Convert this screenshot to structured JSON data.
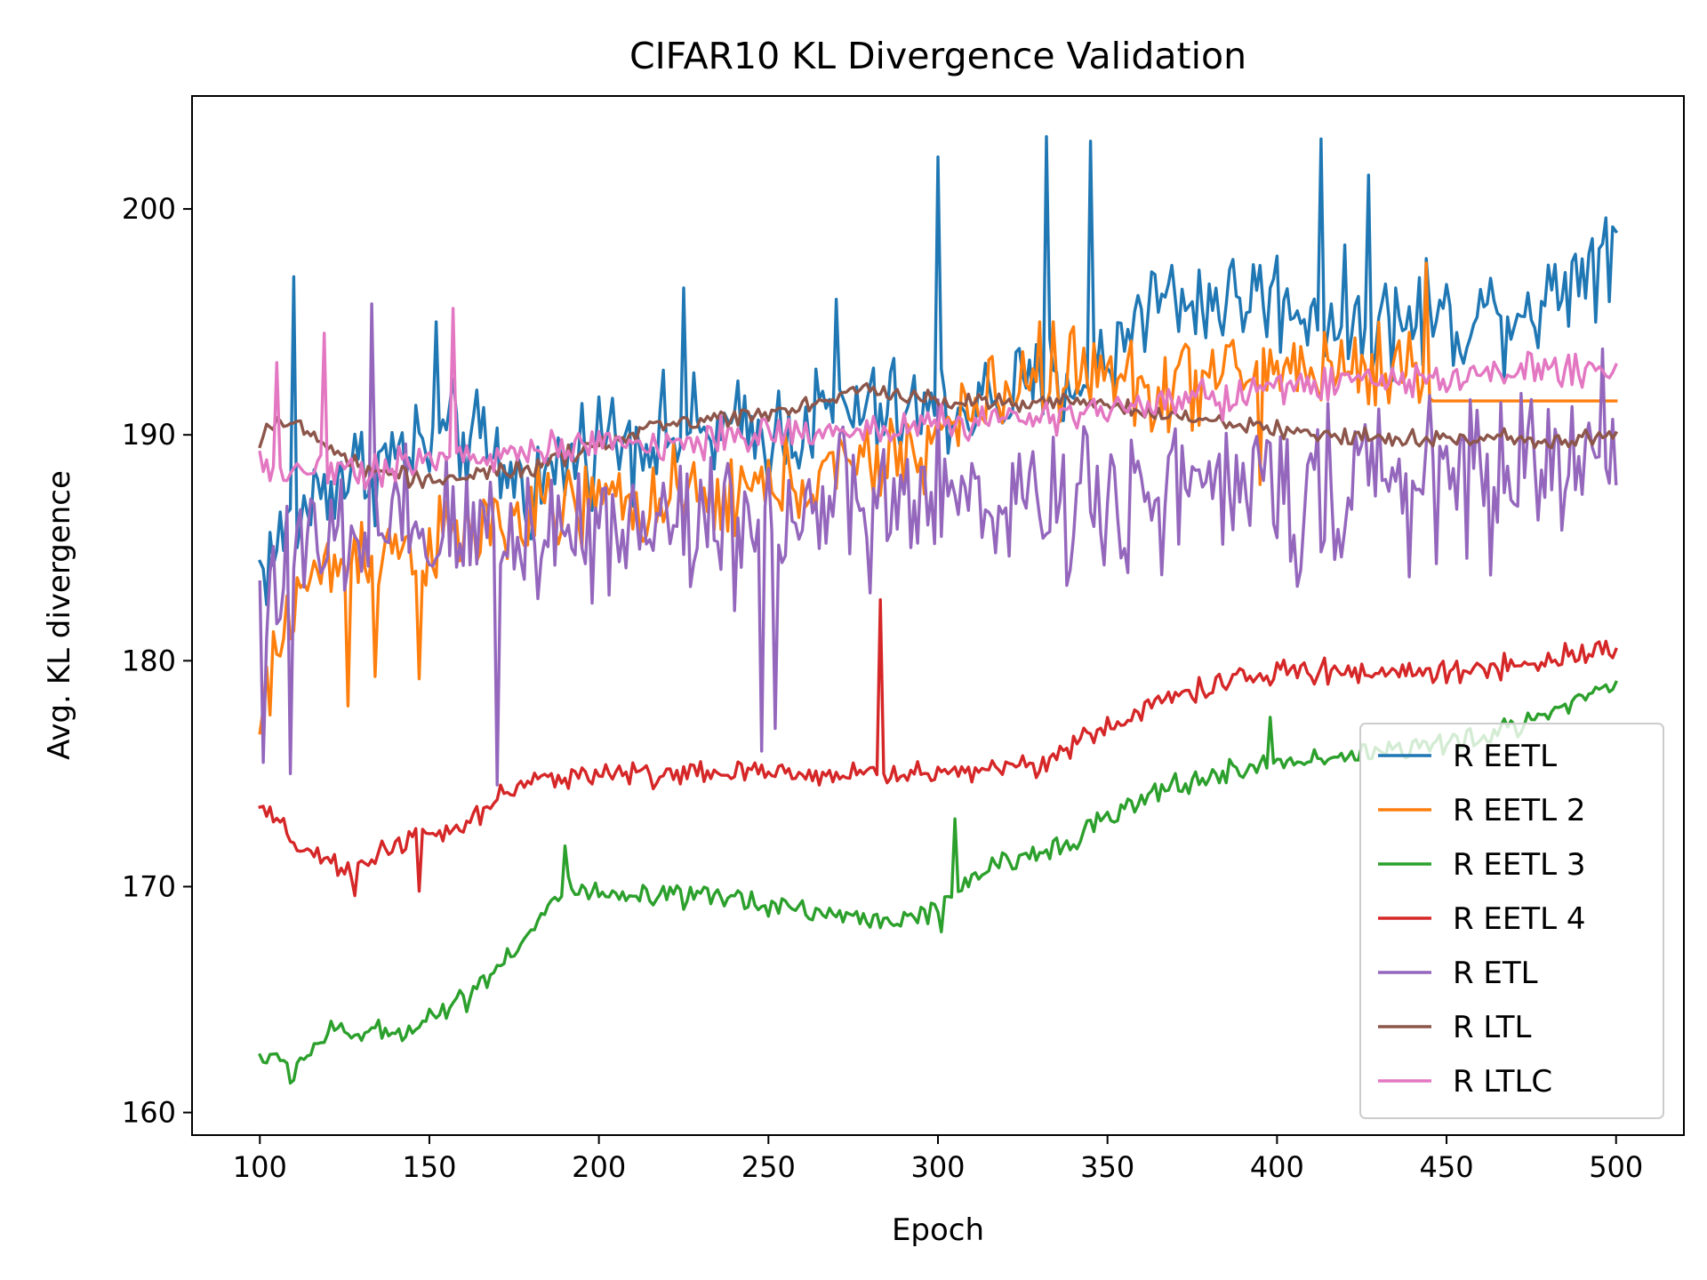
{
  "chart_data": {
    "type": "line",
    "title": "CIFAR10 KL Divergence Validation",
    "xlabel": "Epoch",
    "ylabel": "Avg. KL divergence",
    "xlim": [
      80,
      520
    ],
    "ylim": [
      159,
      205
    ],
    "xticks": [
      100,
      150,
      200,
      250,
      300,
      350,
      400,
      450,
      500
    ],
    "yticks": [
      160,
      170,
      180,
      190,
      200
    ],
    "grid": false,
    "legend_position": "lower-right",
    "x_start": 100,
    "x_end": 500,
    "series": [
      {
        "name": "R EETL",
        "color": "#1f77b4",
        "knots": [
          [
            100,
            184
          ],
          [
            120,
            188
          ],
          [
            140,
            189
          ],
          [
            160,
            190
          ],
          [
            180,
            187.5
          ],
          [
            200,
            190
          ],
          [
            220,
            190
          ],
          [
            250,
            190
          ],
          [
            270,
            191
          ],
          [
            300,
            191
          ],
          [
            330,
            192
          ],
          [
            350,
            193
          ],
          [
            360,
            196
          ],
          [
            400,
            196
          ],
          [
            420,
            195
          ],
          [
            450,
            195
          ],
          [
            480,
            196
          ],
          [
            500,
            199
          ]
        ],
        "amp": 3.5,
        "spikes": [
          [
            110,
            197
          ],
          [
            152,
            195
          ],
          [
            225,
            196.5
          ],
          [
            270,
            196
          ],
          [
            300,
            202.3
          ],
          [
            332,
            203.2
          ],
          [
            345,
            203
          ],
          [
            373,
            195.5
          ],
          [
            395,
            197.5
          ],
          [
            413,
            203.1
          ],
          [
            427,
            201.5
          ],
          [
            444,
            197.8
          ],
          [
            488,
            198
          ],
          [
            500,
            199
          ]
        ]
      },
      {
        "name": "R EETL 2",
        "color": "#ff7f0e",
        "knots": [
          [
            100,
            177
          ],
          [
            110,
            183
          ],
          [
            130,
            185
          ],
          [
            150,
            185
          ],
          [
            170,
            186
          ],
          [
            200,
            187
          ],
          [
            230,
            187
          ],
          [
            260,
            188
          ],
          [
            290,
            189
          ],
          [
            320,
            192
          ],
          [
            340,
            193
          ],
          [
            360,
            192
          ],
          [
            400,
            193
          ],
          [
            440,
            193
          ],
          [
            445,
            191.5
          ],
          [
            500,
            191.5
          ]
        ],
        "amp": 3.0,
        "flat_after": 446,
        "flat_value": 191.5,
        "spikes": [
          [
            100,
            176.8
          ],
          [
            126,
            178
          ],
          [
            134,
            179.3
          ],
          [
            147,
            179.2
          ],
          [
            330,
            195
          ],
          [
            395,
            187.8
          ],
          [
            444,
            197.6
          ]
        ]
      },
      {
        "name": "R EETL 3",
        "color": "#2ca02c",
        "knots": [
          [
            100,
            162.5
          ],
          [
            110,
            162
          ],
          [
            120,
            163.5
          ],
          [
            140,
            163.5
          ],
          [
            160,
            165
          ],
          [
            180,
            168
          ],
          [
            190,
            170
          ],
          [
            200,
            169.5
          ],
          [
            240,
            169.5
          ],
          [
            280,
            168.5
          ],
          [
            300,
            168.8
          ],
          [
            310,
            170.5
          ],
          [
            330,
            171.5
          ],
          [
            350,
            173
          ],
          [
            370,
            174.5
          ],
          [
            400,
            175.5
          ],
          [
            430,
            176
          ],
          [
            460,
            176.5
          ],
          [
            500,
            179
          ]
        ],
        "amp": 0.8,
        "spikes": [
          [
            109,
            161.3
          ],
          [
            190,
            171.8
          ],
          [
            301,
            168
          ],
          [
            305,
            173
          ],
          [
            398,
            177.5
          ]
        ]
      },
      {
        "name": "R EETL 4",
        "color": "#d62728",
        "knots": [
          [
            100,
            173.5
          ],
          [
            110,
            172
          ],
          [
            125,
            170.5
          ],
          [
            140,
            172
          ],
          [
            160,
            172.5
          ],
          [
            170,
            174
          ],
          [
            190,
            175
          ],
          [
            220,
            175
          ],
          [
            250,
            175
          ],
          [
            280,
            175
          ],
          [
            300,
            175
          ],
          [
            330,
            175.5
          ],
          [
            350,
            177
          ],
          [
            370,
            178.5
          ],
          [
            400,
            179.5
          ],
          [
            430,
            179.5
          ],
          [
            450,
            179.5
          ],
          [
            480,
            180
          ],
          [
            500,
            180.8
          ]
        ],
        "amp": 0.8,
        "spikes": [
          [
            283,
            182.7
          ],
          [
            147,
            169.8
          ],
          [
            128,
            169.6
          ]
        ]
      },
      {
        "name": "R ETL",
        "color": "#9467bd",
        "knots": [
          [
            100,
            183.5
          ],
          [
            120,
            185
          ],
          [
            150,
            185.5
          ],
          [
            200,
            186
          ],
          [
            250,
            186.5
          ],
          [
            300,
            187
          ],
          [
            350,
            187.5
          ],
          [
            400,
            187.5
          ],
          [
            450,
            188
          ],
          [
            500,
            189
          ]
        ],
        "amp": 5.0,
        "spikes": [
          [
            101,
            175.5
          ],
          [
            109,
            175
          ],
          [
            133,
            195.8
          ],
          [
            170,
            174.5
          ],
          [
            248,
            176
          ],
          [
            252,
            177
          ],
          [
            280,
            183
          ],
          [
            496,
            193.8
          ]
        ]
      },
      {
        "name": "R LTL",
        "color": "#8c564b",
        "knots": [
          [
            100,
            189.5
          ],
          [
            103,
            190.8
          ],
          [
            115,
            190
          ],
          [
            130,
            188.5
          ],
          [
            150,
            188
          ],
          [
            180,
            188.5
          ],
          [
            200,
            189.5
          ],
          [
            220,
            190.5
          ],
          [
            250,
            191
          ],
          [
            280,
            192
          ],
          [
            300,
            191.5
          ],
          [
            340,
            191.5
          ],
          [
            360,
            191
          ],
          [
            400,
            190.2
          ],
          [
            440,
            189.8
          ],
          [
            470,
            189.8
          ],
          [
            500,
            190
          ]
        ],
        "amp": 0.6,
        "spikes": []
      },
      {
        "name": "R LTLC",
        "color": "#e377c2",
        "knots": [
          [
            100,
            188.5
          ],
          [
            130,
            188.5
          ],
          [
            160,
            189
          ],
          [
            200,
            189.5
          ],
          [
            250,
            190
          ],
          [
            300,
            190.5
          ],
          [
            350,
            191
          ],
          [
            400,
            192
          ],
          [
            450,
            192.5
          ],
          [
            500,
            193
          ]
        ],
        "amp": 1.2,
        "spikes": [
          [
            157,
            195.6
          ],
          [
            119,
            194.5
          ],
          [
            105,
            193.2
          ]
        ]
      }
    ]
  }
}
